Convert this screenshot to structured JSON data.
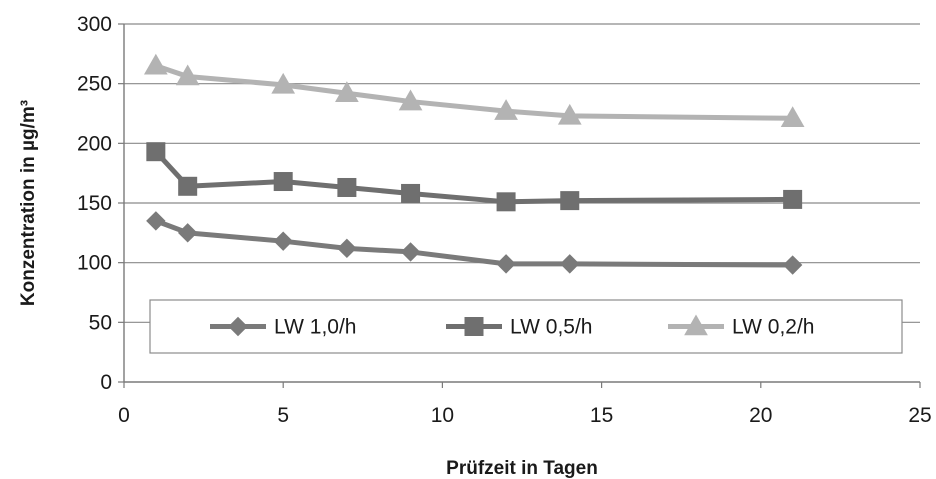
{
  "chart_data": {
    "type": "line",
    "title": "",
    "xlabel": "Prüfzeit in Tagen",
    "ylabel": "Konzentration in µg/m³",
    "xlim": [
      0,
      25
    ],
    "ylim": [
      0,
      300
    ],
    "xticks": [
      0,
      5,
      10,
      15,
      20,
      25
    ],
    "yticks": [
      0,
      50,
      100,
      150,
      200,
      250,
      300
    ],
    "xtick_labels": [
      "0",
      "5",
      "10",
      "15",
      "20",
      "25"
    ],
    "ytick_labels": [
      "0",
      "50",
      "100",
      "150",
      "200",
      "250",
      "300"
    ],
    "grid": "horizontal",
    "legend_position": "inside-bottom",
    "x": [
      1,
      2,
      5,
      7,
      9,
      12,
      14,
      21
    ],
    "series": [
      {
        "name": "LW 1,0/h",
        "marker": "diamond",
        "color": "#7a7a7a",
        "values": [
          135,
          125,
          118,
          112,
          109,
          99,
          99,
          98
        ]
      },
      {
        "name": "LW 0,5/h",
        "marker": "square",
        "color": "#6f6f6f",
        "values": [
          193,
          164,
          168,
          163,
          158,
          151,
          152,
          153
        ]
      },
      {
        "name": "LW 0,2/h",
        "marker": "triangle",
        "color": "#b3b3b3",
        "values": [
          265,
          256,
          249,
          242,
          235,
          227,
          223,
          221
        ]
      }
    ]
  }
}
